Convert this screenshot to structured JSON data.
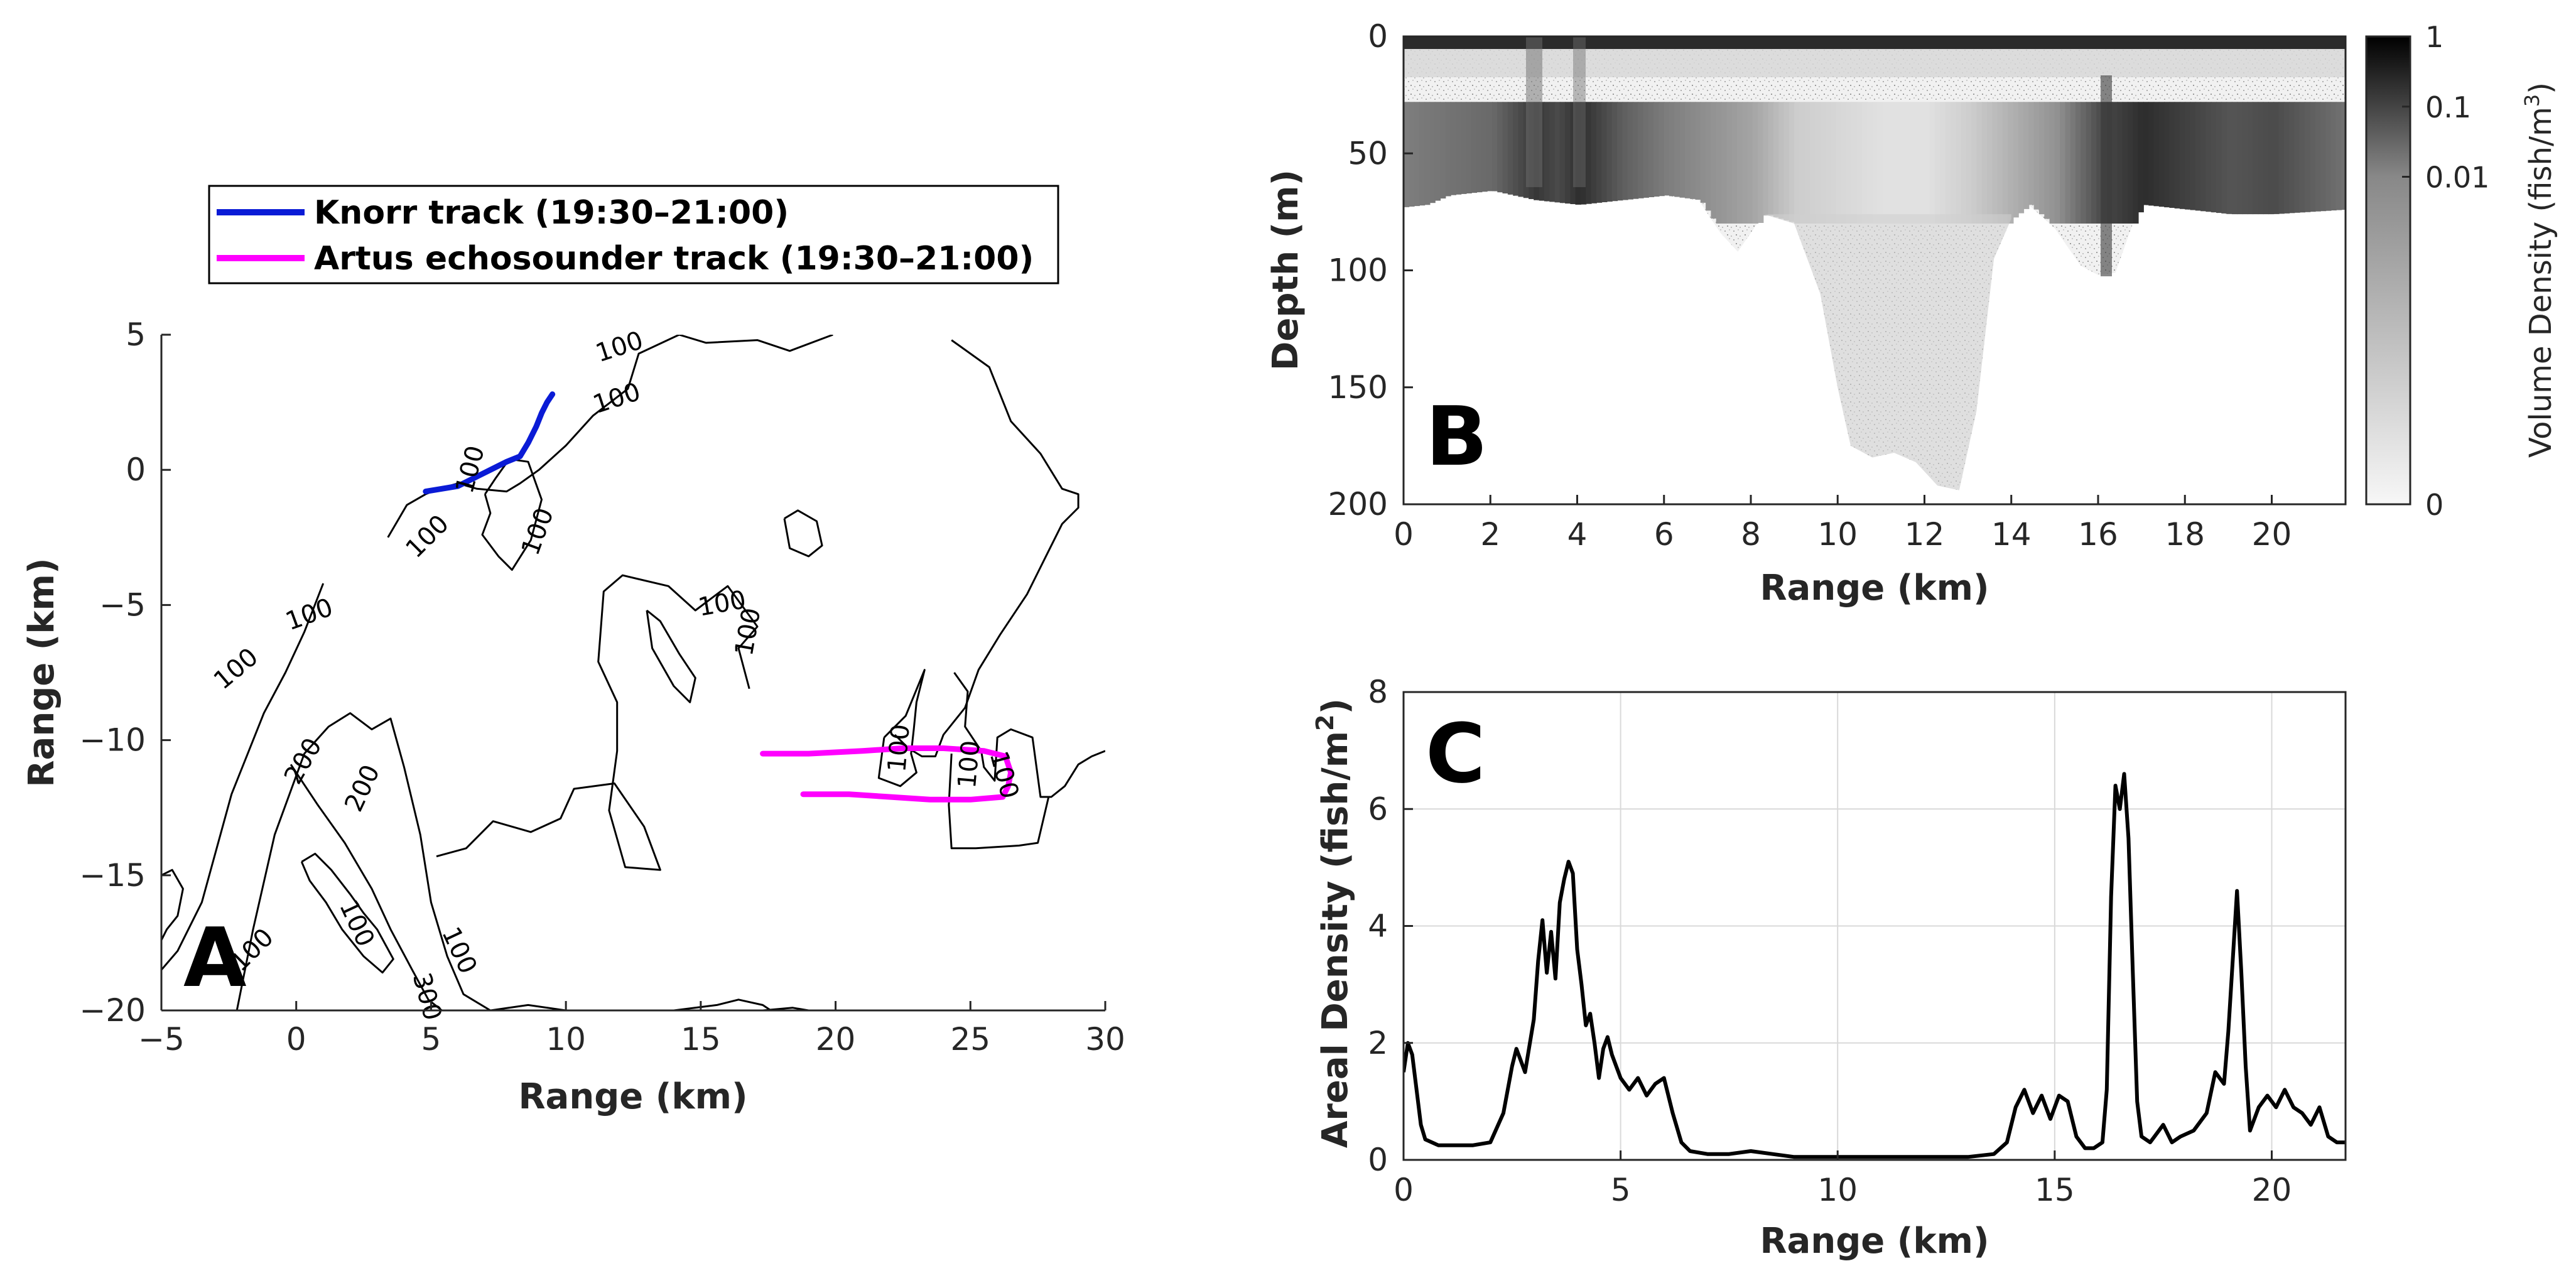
{
  "colors": {
    "knorr": "#0a1bd6",
    "artus": "#ff00ff",
    "axis": "#262626",
    "grid": "#d9d9d9",
    "contour": "#000000"
  },
  "chart_data": [
    {
      "panel": "A",
      "type": "line",
      "letter": "A",
      "xlabel": "Range (km)",
      "ylabel": "Range (km)",
      "xlim": [
        -5,
        30
      ],
      "ylim": [
        -20,
        5
      ],
      "xticks": [
        -5,
        0,
        5,
        10,
        15,
        20,
        25,
        30
      ],
      "yticks": [
        5,
        0,
        -5,
        -10,
        -15,
        -20
      ],
      "grid": false,
      "legend": {
        "placement": "top",
        "entries": [
          {
            "key": "knorr",
            "label": "Knorr track (19:30–21:00)"
          },
          {
            "key": "artus",
            "label": "Artus echosounder track (19:30–21:00)"
          }
        ]
      },
      "series": [
        {
          "name": "Knorr track (19:30–21:00)",
          "key": "knorr",
          "x": [
            4.8,
            5.4,
            6.0,
            6.6,
            7.2,
            7.8,
            8.3,
            8.6,
            8.9,
            9.1,
            9.3,
            9.5
          ],
          "y": [
            -0.8,
            -0.7,
            -0.6,
            -0.3,
            0.0,
            0.3,
            0.5,
            1.0,
            1.6,
            2.1,
            2.5,
            2.8
          ]
        },
        {
          "name": "Artus echosounder track (19:30–21:00)",
          "key": "artus",
          "x": [
            17.3,
            19.0,
            21.0,
            22.5,
            24.0,
            25.5,
            26.3,
            26.5,
            26.4,
            26.2,
            25.0,
            23.5,
            22.0,
            20.5,
            19.0,
            18.8
          ],
          "y": [
            -10.5,
            -10.5,
            -10.4,
            -10.3,
            -10.3,
            -10.4,
            -10.6,
            -11.2,
            -11.7,
            -12.1,
            -12.2,
            -12.2,
            -12.1,
            -12.0,
            -12.0,
            -12.0
          ]
        }
      ],
      "contours": [
        {
          "x": [
            -5,
            -4.4,
            -3.5,
            -2.4,
            -1.2,
            -0.4,
            0.3,
            1.0
          ],
          "y": [
            -18.5,
            -17.8,
            -16.0,
            -12.0,
            -9.0,
            -7.5,
            -6.0,
            -4.2
          ]
        },
        {
          "x": [
            -2.2,
            -1.6,
            -0.8,
            0.3,
            1.2,
            2.0,
            2.8,
            3.5,
            4.0,
            4.6,
            5.0,
            5.6,
            6.2,
            7.2,
            8.6,
            10.0
          ],
          "y": [
            -20.0,
            -17.0,
            -13.5,
            -10.5,
            -9.5,
            -9.0,
            -9.6,
            -9.2,
            -11.0,
            -13.5,
            -16.0,
            -18.0,
            -19.4,
            -20.0,
            -19.8,
            -20.0
          ]
        },
        {
          "x": [
            0.2,
            0.7,
            1.3,
            2.0,
            2.5,
            3.0,
            3.6,
            3.2,
            2.5,
            1.7,
            1.1,
            0.5,
            0.2
          ],
          "y": [
            -14.5,
            -14.2,
            -14.8,
            -15.7,
            -16.4,
            -17.0,
            -18.1,
            -18.6,
            -18.0,
            -17.0,
            -16.0,
            -15.2,
            -14.5
          ]
        },
        {
          "x": [
            -0.2,
            0.8,
            1.8,
            2.8,
            3.5,
            4.3,
            4.9,
            5.4
          ],
          "y": [
            -10.9,
            -12.4,
            -13.8,
            -15.5,
            -17.0,
            -18.5,
            -19.6,
            -20.0
          ]
        },
        {
          "x": [
            5.2,
            6.3,
            7.3,
            8.7,
            9.8,
            10.3,
            11.8,
            12.9,
            13.5,
            12.2,
            11.6,
            11.9,
            11.9,
            11.2,
            11.4,
            12.1,
            13.8,
            14.8,
            16.0,
            17.1,
            16.4,
            16.8
          ],
          "y": [
            -14.3,
            -14.0,
            -13.0,
            -13.4,
            -12.9,
            -11.8,
            -11.6,
            -13.2,
            -14.8,
            -14.7,
            -12.6,
            -10.4,
            -8.6,
            -7.1,
            -4.5,
            -3.9,
            -4.3,
            -5.2,
            -4.3,
            -5.8,
            -6.6,
            -8.1
          ]
        },
        {
          "x": [
            -5,
            -4.6,
            -4.2,
            -4.4,
            -4.8,
            -5
          ],
          "y": [
            -15.0,
            -14.8,
            -15.5,
            -16.5,
            -17.0,
            -17.4
          ]
        },
        {
          "x": [
            13.0,
            13.5,
            14.2,
            14.8,
            14.6,
            14.0,
            13.2,
            13.0
          ],
          "y": [
            -5.2,
            -5.6,
            -6.8,
            -7.7,
            -8.6,
            -8.0,
            -6.6,
            -5.2
          ]
        },
        {
          "x": [
            3.4,
            4.1,
            4.8,
            5.3,
            6.0,
            6.7,
            7.8,
            8.3,
            9.0,
            10.0,
            11.0,
            12.3,
            12.7,
            14.2,
            15.2,
            17.1,
            18.3,
            19.9
          ],
          "y": [
            -2.5,
            -1.3,
            -0.9,
            -0.7,
            -0.5,
            -0.7,
            -0.8,
            -0.5,
            0.0,
            0.9,
            2.0,
            3.0,
            4.3,
            5.0,
            4.7,
            4.8,
            4.4,
            5.0
          ]
        },
        {
          "x": [
            7.0,
            7.4,
            7.9,
            8.6,
            9.1,
            8.7,
            8.0,
            7.5,
            6.9,
            7.2,
            7.0
          ],
          "y": [
            -0.9,
            -0.3,
            0.4,
            0.3,
            -1.1,
            -2.6,
            -3.7,
            -3.2,
            -2.4,
            -1.6,
            -0.9
          ]
        },
        {
          "x": [
            18.1,
            18.6,
            19.3,
            19.5,
            19.0,
            18.3,
            18.1
          ],
          "y": [
            -1.8,
            -1.5,
            -1.9,
            -2.8,
            -3.2,
            -2.9,
            -1.8
          ]
        },
        {
          "x": [
            24.3,
            25.7,
            26.5,
            27.6,
            28.4,
            29.0,
            29.0,
            28.4,
            27.9,
            27.1,
            26.1,
            25.3,
            24.8,
            24.0,
            23.7,
            23.2,
            22.7,
            22.2
          ],
          "y": [
            4.8,
            3.8,
            1.8,
            0.6,
            -0.7,
            -0.9,
            -1.4,
            -2.0,
            -3.0,
            -4.6,
            -6.1,
            -7.4,
            -8.8,
            -9.8,
            -10.6,
            -10.6,
            -10.3,
            -9.8
          ]
        },
        {
          "x": [
            21.8,
            22.6,
            23.3,
            23.0,
            22.9,
            22.8,
            23.0,
            22.4,
            21.6,
            21.8
          ],
          "y": [
            -9.9,
            -9.1,
            -7.4,
            -8.6,
            -9.6,
            -10.5,
            -11.2,
            -11.7,
            -11.4,
            -9.9
          ]
        },
        {
          "x": [
            24.4,
            24.9,
            24.8,
            25.4,
            25.5,
            25.9,
            26.0,
            26.5,
            27.3,
            27.6,
            28.0,
            28.5,
            29.0,
            29.5,
            30.0
          ],
          "y": [
            -7.5,
            -8.2,
            -9.5,
            -10.4,
            -11.0,
            -11.5,
            -9.9,
            -9.6,
            -9.9,
            -12.1,
            -12.1,
            -11.7,
            -10.9,
            -10.6,
            -10.4
          ]
        },
        {
          "x": [
            24.3,
            24.2,
            24.3,
            25.2,
            26.8,
            27.5,
            27.9
          ],
          "y": [
            -10.5,
            -12.4,
            -14.0,
            -14.0,
            -13.9,
            -13.8,
            -12.1
          ]
        },
        {
          "x": [
            14.0,
            15.6,
            16.4,
            17.3,
            17.6,
            17.3,
            17.3,
            18.4,
            19.0,
            20.4,
            21.5,
            22.6,
            23.5,
            24.8
          ],
          "y": [
            -20.0,
            -19.8,
            -19.6,
            -19.8,
            -20.0,
            -20.0,
            -20.0,
            -19.9,
            -20.0,
            -20.0,
            -20.0,
            -20.0,
            -20.0,
            -20.0
          ]
        }
      ],
      "contour_labels": [
        {
          "text": "100",
          "x": 12.0,
          "y": 4.5,
          "rot": -18
        },
        {
          "text": "100",
          "x": 11.9,
          "y": 2.6,
          "rot": -18
        },
        {
          "text": "100",
          "x": 6.5,
          "y": 0.0,
          "rot": -75
        },
        {
          "text": "100",
          "x": 4.9,
          "y": -2.5,
          "rot": -45
        },
        {
          "text": "100",
          "x": 9.0,
          "y": -2.3,
          "rot": -70
        },
        {
          "text": "100",
          "x": 15.8,
          "y": -5.0,
          "rot": -10
        },
        {
          "text": "100",
          "x": 16.8,
          "y": -6.0,
          "rot": -80
        },
        {
          "text": "100",
          "x": 0.5,
          "y": -5.4,
          "rot": -20
        },
        {
          "text": "100",
          "x": -2.2,
          "y": -7.4,
          "rot": -40
        },
        {
          "text": "200",
          "x": 0.3,
          "y": -10.8,
          "rot": -60
        },
        {
          "text": "200",
          "x": 2.5,
          "y": -11.8,
          "rot": -65
        },
        {
          "text": "100",
          "x": 22.4,
          "y": -10.3,
          "rot": -85
        },
        {
          "text": "100",
          "x": 25.0,
          "y": -10.9,
          "rot": -85
        },
        {
          "text": "100",
          "x": 26.2,
          "y": -11.3,
          "rot": 75
        },
        {
          "text": "100",
          "x": 2.2,
          "y": -16.8,
          "rot": 65
        },
        {
          "text": "100",
          "x": 6.0,
          "y": -17.8,
          "rot": 65
        },
        {
          "text": "100",
          "x": -1.6,
          "y": -17.8,
          "rot": -45
        },
        {
          "text": "300",
          "x": 4.8,
          "y": -19.5,
          "rot": 75
        }
      ]
    },
    {
      "panel": "B",
      "type": "heatmap",
      "letter": "B",
      "xlabel": "Range (km)",
      "ylabel": "Depth (m)",
      "xlim": [
        0,
        21.7
      ],
      "ylim": [
        200,
        0
      ],
      "xticks": [
        0,
        2,
        4,
        6,
        8,
        10,
        12,
        14,
        16,
        18,
        20
      ],
      "yticks": [
        0,
        50,
        100,
        150,
        200
      ],
      "colorbar": {
        "label": "Volume Density (fish/m",
        "label_sup": "3",
        "label_end": ")",
        "ticks": [
          "1",
          "0.1",
          "0.01",
          "0"
        ],
        "tick_positions": [
          0.0,
          0.15,
          0.3,
          1.0
        ]
      },
      "seafloor": {
        "x": [
          0,
          0.5,
          1.0,
          2.0,
          3.0,
          4.0,
          5.0,
          6.0,
          6.8,
          7.3,
          7.7,
          8.3,
          9.0,
          9.6,
          10.0,
          10.3,
          10.8,
          11.3,
          11.8,
          12.3,
          12.8,
          13.2,
          13.6,
          14.0,
          14.4,
          15.0,
          15.6,
          16.0,
          16.4,
          16.8,
          17.0,
          18.0,
          19.0,
          20.0,
          21.7
        ],
        "y": [
          73,
          72,
          68,
          66,
          70,
          72,
          70,
          68,
          70,
          84,
          92,
          76,
          80,
          110,
          150,
          175,
          180,
          178,
          182,
          192,
          194,
          160,
          95,
          78,
          72,
          82,
          98,
          102,
          101,
          80,
          72,
          74,
          76,
          76,
          74
        ]
      },
      "fish_layer": {
        "x": [
          0,
          2,
          3,
          3.5,
          4,
          5,
          6,
          7,
          8,
          9,
          10,
          11,
          12,
          13,
          14,
          15,
          16,
          17,
          18,
          19,
          20,
          21.7
        ],
        "density": [
          0.55,
          0.65,
          0.9,
          0.8,
          0.95,
          0.7,
          0.55,
          0.45,
          0.35,
          0.15,
          0.1,
          0.05,
          0.05,
          0.15,
          0.3,
          0.45,
          0.8,
          0.95,
          0.85,
          0.75,
          0.8,
          0.6
        ]
      }
    },
    {
      "panel": "C",
      "type": "line",
      "letter": "C",
      "xlabel": "Range (km)",
      "ylabel": "Areal Density (fish/m",
      "ylabel_sup": "2",
      "ylabel_end": ")",
      "xlim": [
        0,
        21.7
      ],
      "ylim": [
        0,
        8
      ],
      "xticks": [
        0,
        5,
        10,
        15,
        20
      ],
      "yticks": [
        0,
        2,
        4,
        6,
        8
      ],
      "grid": true,
      "series": [
        {
          "x": [
            0.0,
            0.1,
            0.2,
            0.3,
            0.4,
            0.5,
            0.8,
            1.2,
            1.6,
            2.0,
            2.3,
            2.5,
            2.6,
            2.8,
            3.0,
            3.1,
            3.2,
            3.3,
            3.4,
            3.5,
            3.6,
            3.7,
            3.8,
            3.9,
            4.0,
            4.1,
            4.2,
            4.3,
            4.4,
            4.5,
            4.6,
            4.7,
            4.8,
            5.0,
            5.2,
            5.4,
            5.6,
            5.8,
            6.0,
            6.2,
            6.4,
            6.6,
            7.0,
            7.5,
            8.0,
            8.5,
            9.0,
            9.5,
            10.0,
            11.0,
            12.0,
            13.0,
            13.6,
            13.9,
            14.1,
            14.3,
            14.5,
            14.7,
            14.9,
            15.1,
            15.3,
            15.5,
            15.7,
            15.9,
            16.1,
            16.2,
            16.3,
            16.4,
            16.5,
            16.6,
            16.7,
            16.8,
            16.9,
            17.0,
            17.2,
            17.5,
            17.7,
            17.9,
            18.2,
            18.5,
            18.7,
            18.9,
            19.0,
            19.1,
            19.2,
            19.3,
            19.4,
            19.5,
            19.7,
            19.9,
            20.1,
            20.3,
            20.5,
            20.7,
            20.9,
            21.1,
            21.3,
            21.5,
            21.7
          ],
          "y": [
            1.5,
            2.0,
            1.8,
            1.2,
            0.6,
            0.35,
            0.25,
            0.25,
            0.25,
            0.3,
            0.8,
            1.6,
            1.9,
            1.5,
            2.4,
            3.4,
            4.1,
            3.2,
            3.9,
            3.1,
            4.4,
            4.8,
            5.1,
            4.9,
            3.6,
            3.0,
            2.3,
            2.5,
            2.0,
            1.4,
            1.9,
            2.1,
            1.8,
            1.4,
            1.2,
            1.4,
            1.1,
            1.3,
            1.4,
            0.8,
            0.3,
            0.15,
            0.1,
            0.1,
            0.15,
            0.1,
            0.05,
            0.05,
            0.05,
            0.05,
            0.05,
            0.05,
            0.1,
            0.3,
            0.9,
            1.2,
            0.8,
            1.1,
            0.7,
            1.1,
            1.0,
            0.4,
            0.2,
            0.2,
            0.3,
            1.2,
            4.5,
            6.4,
            6.0,
            6.6,
            5.5,
            3.2,
            1.0,
            0.4,
            0.3,
            0.6,
            0.3,
            0.4,
            0.5,
            0.8,
            1.5,
            1.3,
            2.2,
            3.4,
            4.6,
            3.2,
            1.6,
            0.5,
            0.9,
            1.1,
            0.9,
            1.2,
            0.9,
            0.8,
            0.6,
            0.9,
            0.4,
            0.3,
            0.3
          ]
        }
      ]
    }
  ]
}
